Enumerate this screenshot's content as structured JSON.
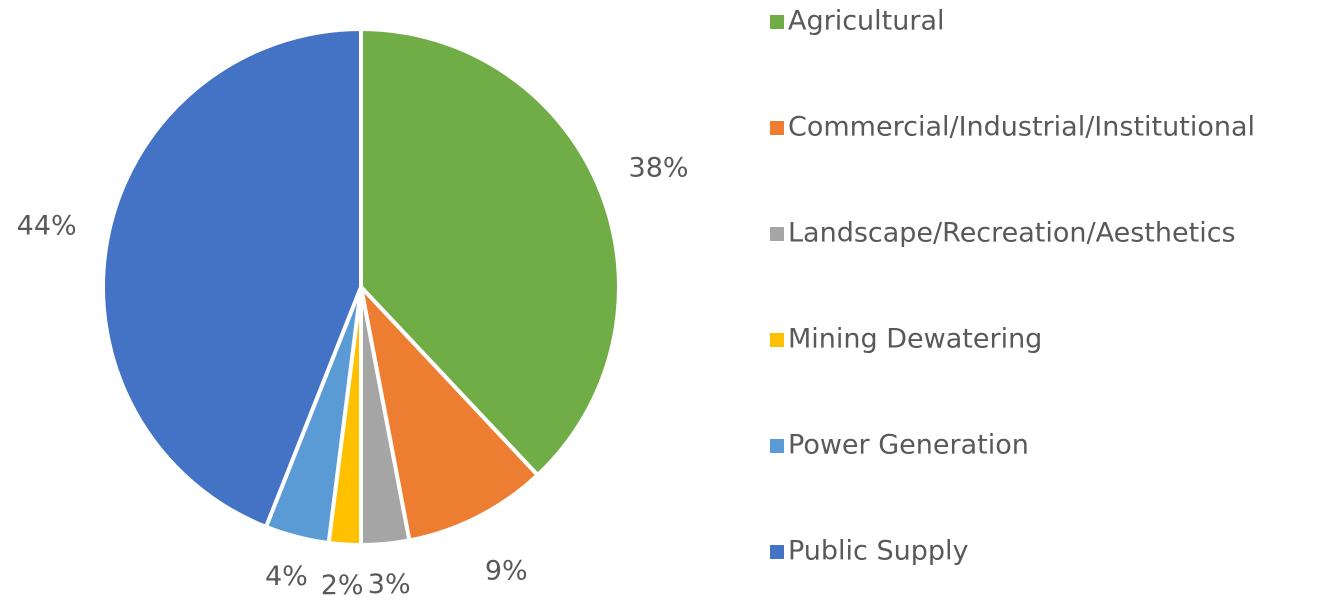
{
  "chart_data": {
    "type": "pie",
    "categories": [
      "Agricultural",
      "Commercial/Industrial/Institutional",
      "Landscape/Recreation/Aesthetics",
      "Mining Dewatering",
      "Power Generation",
      "Public Supply"
    ],
    "values": [
      38,
      9,
      3,
      2,
      4,
      44
    ],
    "value_labels": [
      "38%",
      "9%",
      "3%",
      "2%",
      "4%",
      "44%"
    ],
    "colors": [
      "#70ad47",
      "#ed7d31",
      "#a5a5a5",
      "#ffc000",
      "#5b9bd5",
      "#4472c4"
    ],
    "legend": "right"
  }
}
